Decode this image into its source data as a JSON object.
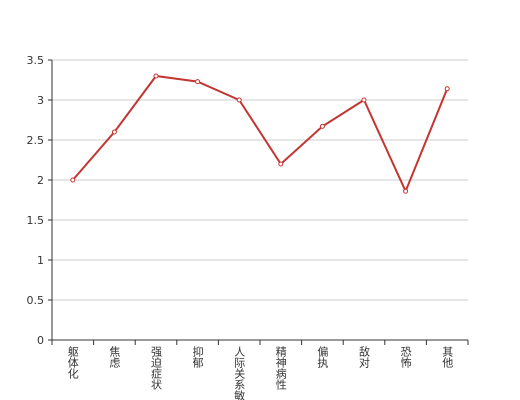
{
  "chart_data": {
    "type": "line",
    "categories": [
      "躯体化",
      "焦虑",
      "强迫症状",
      "抑郁",
      "人际关系敏感",
      "精神病性",
      "偏执",
      "敌对",
      "恐怖",
      "其他"
    ],
    "values": [
      2.0,
      2.6,
      3.3,
      3.23,
      3.0,
      2.2,
      2.67,
      3.0,
      1.86,
      3.14
    ],
    "color": "#c23531",
    "ylim": [
      0,
      3.5
    ],
    "yticks": [
      0,
      0.5,
      1,
      1.5,
      2,
      2.5,
      3,
      3.5
    ],
    "grid": true
  }
}
